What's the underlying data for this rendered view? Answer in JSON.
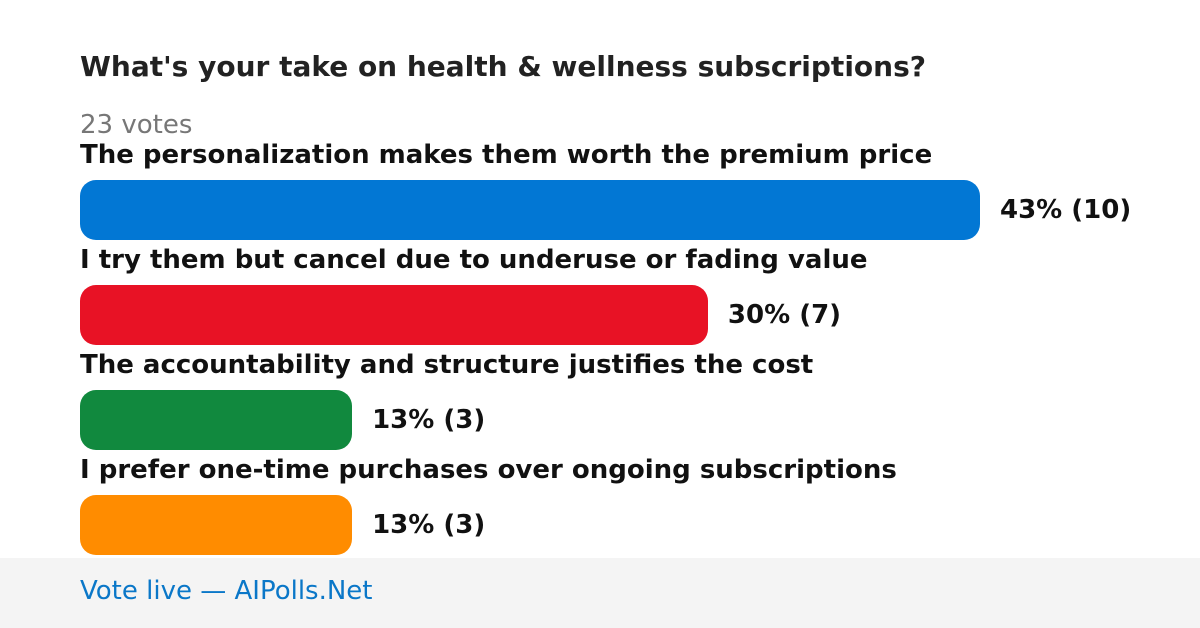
{
  "header": {
    "title": "What's your take on health & wellness subscriptions?",
    "votes": "23 votes"
  },
  "options": [
    {
      "label": "The personalization makes them worth the premium price",
      "percent": 43,
      "votes": 10,
      "value_label": "43% (10)",
      "color": "#0277d4"
    },
    {
      "label": "I try them but cancel due to underuse or fading value",
      "percent": 30,
      "votes": 7,
      "value_label": "30% (7)",
      "color": "#e81225"
    },
    {
      "label": "The accountability and structure justifies the cost",
      "percent": 13,
      "votes": 3,
      "value_label": "13% (3)",
      "color": "#11893e"
    },
    {
      "label": "I prefer one-time purchases over ongoing subscriptions",
      "percent": 13,
      "votes": 3,
      "value_label": "13% (3)",
      "color": "#ff8c00"
    }
  ],
  "footer": {
    "text": "Vote live — AIPolls.Net"
  }
}
